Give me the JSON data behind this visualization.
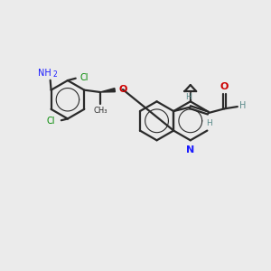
{
  "bg_color": "#ebebeb",
  "bond_color": "#2a2a2a",
  "bond_width": 1.6,
  "figsize": [
    3.0,
    3.0
  ],
  "dpi": 100,
  "colors": {
    "N": "#1a1aff",
    "Cl": "#008800",
    "O": "#cc0000",
    "NH2": "#1a1aff",
    "H": "#5a8a8a",
    "C": "#2a2a2a"
  },
  "xlim": [
    0,
    10
  ],
  "ylim": [
    0,
    10
  ]
}
